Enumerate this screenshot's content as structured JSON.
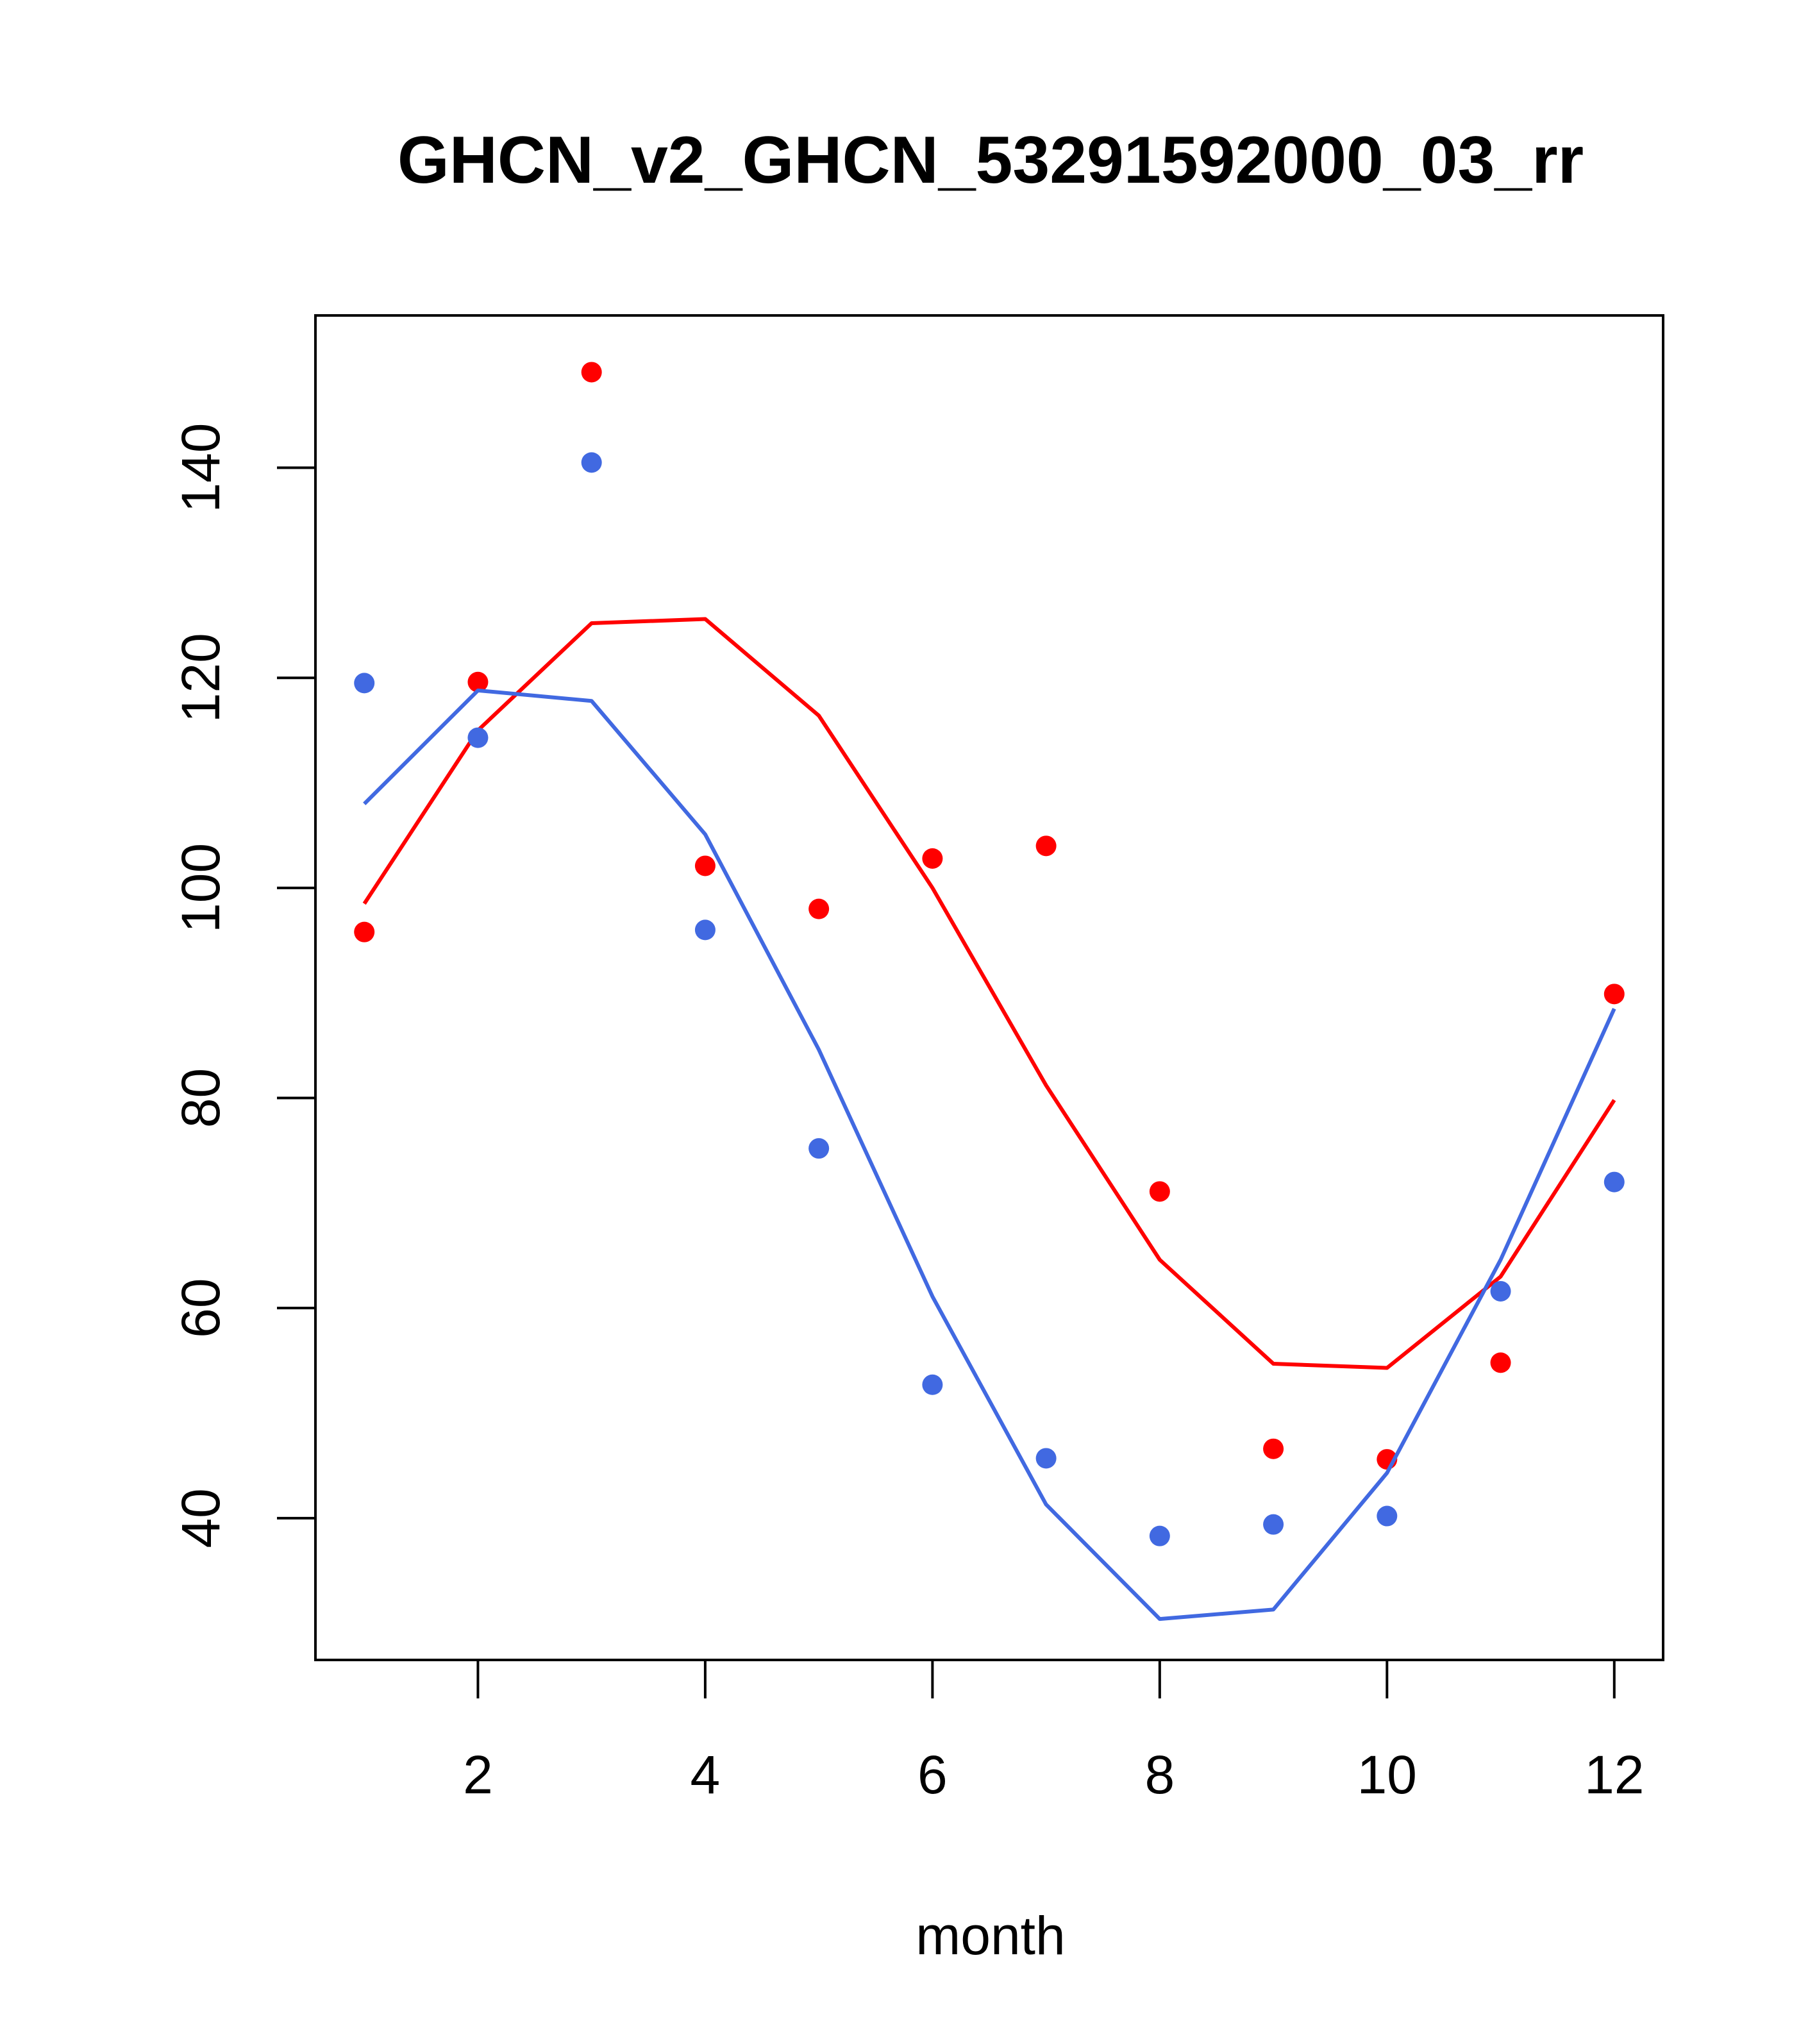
{
  "chart_data": {
    "type": "line",
    "title": "GHCN_v2_GHCN_53291592000_03_rr",
    "xlabel": "month",
    "ylabel": "",
    "xlim": [
      0.57,
      12.43
    ],
    "ylim": [
      26.5,
      154.5
    ],
    "x_ticks": [
      2,
      4,
      6,
      8,
      10,
      12
    ],
    "y_ticks": [
      40,
      60,
      80,
      100,
      120,
      140
    ],
    "grid": false,
    "x": [
      1,
      2,
      3,
      4,
      5,
      6,
      7,
      8,
      9,
      10,
      11,
      12
    ],
    "series": [
      {
        "color": "#ff0000",
        "line": [
          98.5,
          115.0,
          125.2,
          125.6,
          116.4,
          100.0,
          81.2,
          64.6,
          54.7,
          54.3,
          63.0,
          79.8
        ],
        "points": [
          95.8,
          119.6,
          149.1,
          102.1,
          98.0,
          102.8,
          104.0,
          71.1,
          46.6,
          45.6,
          54.8,
          89.9
        ]
      },
      {
        "color": "#4169e1",
        "line": [
          108.0,
          118.8,
          117.8,
          105.1,
          84.6,
          61.1,
          41.3,
          30.4,
          31.3,
          44.3,
          64.6,
          88.5
        ],
        "points": [
          119.5,
          114.3,
          140.5,
          96.0,
          75.2,
          52.7,
          45.7,
          38.3,
          39.4,
          40.2,
          61.6,
          72.0
        ]
      }
    ]
  }
}
